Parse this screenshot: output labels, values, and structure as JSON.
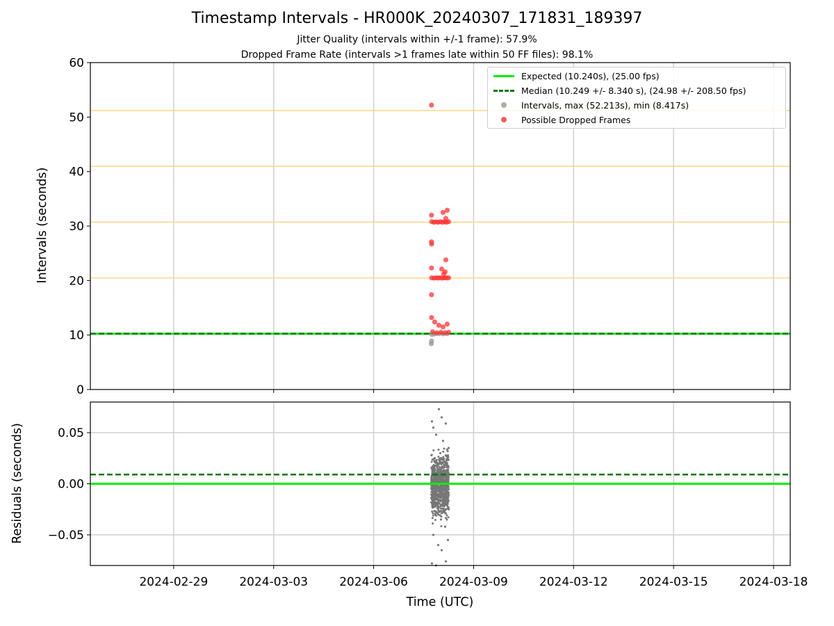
{
  "title": "Timestamp Intervals - HR000K_20240307_171831_189397",
  "subtitle1": "Jitter Quality (intervals within +/-1 frame): 57.9%",
  "subtitle2": "Dropped Frame Rate (intervals >1 frames late within 50 FF files): 98.1%",
  "colors": {
    "expected": "#00ee00",
    "median": "#007700",
    "intervals": "#999999",
    "dropped": "#ff3333",
    "residuals": "#777777",
    "frame_lines": "#ffd27a",
    "grid": "#cccccc"
  },
  "legend": {
    "expected": "Expected (10.240s), (25.00 fps)",
    "median": "Median (10.249 +/- 8.340 s), (24.98 +/- 208.50 fps)",
    "intervals": "Intervals, max (52.213s), min (8.417s)",
    "dropped": "Possible Dropped Frames"
  },
  "chart_data": [
    {
      "type": "scatter",
      "ylabel": "Intervals (seconds)",
      "ylim": [
        0,
        60
      ],
      "yticks": [
        "0",
        "10",
        "20",
        "30",
        "40",
        "50",
        "60"
      ],
      "xlim": [
        "2024-02-26T12:00",
        "2024-03-18T12:00"
      ],
      "grid": "vertical",
      "legend_position": "top-right",
      "frame_multiple_lines": [
        20.48,
        30.72,
        40.96,
        51.2
      ],
      "expected": 10.24,
      "median": 10.249,
      "series": [
        {
          "name": "Intervals, max (52.213s), min (8.417s)",
          "points": [
            {
              "x": "2024-03-07T17:30",
              "y": 8.42
            },
            {
              "x": "2024-03-07T17:45",
              "y": 8.9
            },
            {
              "x": "2024-03-07T18:00",
              "y": 10.1
            },
            {
              "x": "2024-03-07T20:00",
              "y": 10.2
            },
            {
              "x": "2024-03-07T23:00",
              "y": 10.25
            },
            {
              "x": "2024-03-08T02:00",
              "y": 10.22
            },
            {
              "x": "2024-03-08T05:00",
              "y": 10.26
            }
          ]
        },
        {
          "name": "Possible Dropped Frames",
          "points": [
            {
              "x": "2024-03-07T17:40",
              "y": 52.2
            },
            {
              "x": "2024-03-07T17:40",
              "y": 32.0
            },
            {
              "x": "2024-03-08T02:00",
              "y": 32.5
            },
            {
              "x": "2024-03-08T05:00",
              "y": 32.9
            },
            {
              "x": "2024-03-08T04:00",
              "y": 31.4
            },
            {
              "x": "2024-03-07T17:50",
              "y": 30.8
            },
            {
              "x": "2024-03-07T19:30",
              "y": 30.7
            },
            {
              "x": "2024-03-07T21:00",
              "y": 30.75
            },
            {
              "x": "2024-03-07T22:30",
              "y": 30.7
            },
            {
              "x": "2024-03-08T00:00",
              "y": 30.8
            },
            {
              "x": "2024-03-08T01:30",
              "y": 30.7
            },
            {
              "x": "2024-03-08T03:00",
              "y": 30.75
            },
            {
              "x": "2024-03-08T04:30",
              "y": 30.7
            },
            {
              "x": "2024-03-08T06:00",
              "y": 30.8
            },
            {
              "x": "2024-03-07T17:40",
              "y": 27.1
            },
            {
              "x": "2024-03-07T17:45",
              "y": 26.7
            },
            {
              "x": "2024-03-08T04:00",
              "y": 23.8
            },
            {
              "x": "2024-03-07T17:40",
              "y": 22.3
            },
            {
              "x": "2024-03-08T01:00",
              "y": 22.1
            },
            {
              "x": "2024-03-08T03:30",
              "y": 21.6
            },
            {
              "x": "2024-03-08T02:30",
              "y": 21.2
            },
            {
              "x": "2024-03-07T17:50",
              "y": 20.5
            },
            {
              "x": "2024-03-07T19:30",
              "y": 20.45
            },
            {
              "x": "2024-03-07T21:00",
              "y": 20.5
            },
            {
              "x": "2024-03-07T22:30",
              "y": 20.48
            },
            {
              "x": "2024-03-08T00:00",
              "y": 20.5
            },
            {
              "x": "2024-03-08T01:30",
              "y": 20.45
            },
            {
              "x": "2024-03-08T03:00",
              "y": 20.5
            },
            {
              "x": "2024-03-08T04:30",
              "y": 20.48
            },
            {
              "x": "2024-03-08T06:00",
              "y": 20.5
            },
            {
              "x": "2024-03-07T17:40",
              "y": 17.4
            },
            {
              "x": "2024-03-07T17:45",
              "y": 13.2
            },
            {
              "x": "2024-03-07T20:00",
              "y": 12.4
            },
            {
              "x": "2024-03-08T05:00",
              "y": 12.0
            },
            {
              "x": "2024-03-07T23:00",
              "y": 11.8
            },
            {
              "x": "2024-03-08T02:00",
              "y": 11.5
            },
            {
              "x": "2024-03-07T18:30",
              "y": 10.6
            },
            {
              "x": "2024-03-07T21:30",
              "y": 10.4
            },
            {
              "x": "2024-03-08T00:30",
              "y": 10.5
            },
            {
              "x": "2024-03-08T03:30",
              "y": 10.4
            },
            {
              "x": "2024-03-08T06:00",
              "y": 10.5
            }
          ]
        }
      ]
    },
    {
      "type": "scatter",
      "xlabel": "Time (UTC)",
      "ylabel": "Residuals (seconds)",
      "ylim": [
        -0.08,
        0.08
      ],
      "yticks": [
        "0.05",
        "0.00",
        "−0.05"
      ],
      "xticks": [
        "2024-02-29",
        "2024-03-03",
        "2024-03-06",
        "2024-03-09",
        "2024-03-12",
        "2024-03-15",
        "2024-03-18"
      ],
      "xlim": [
        "2024-02-26T12:00",
        "2024-03-18T12:00"
      ],
      "grid": "both",
      "expected": 0.0,
      "median": 0.009,
      "series": [
        {
          "name": "Residuals",
          "points": [
            {
              "x": "2024-03-07T18:00",
              "y": 0.061
            },
            {
              "x": "2024-03-07T19:00",
              "y": 0.055
            },
            {
              "x": "2024-03-07T21:00",
              "y": 0.048
            },
            {
              "x": "2024-03-07T23:00",
              "y": 0.073
            },
            {
              "x": "2024-03-08T01:00",
              "y": 0.065
            },
            {
              "x": "2024-03-08T02:00",
              "y": 0.042
            },
            {
              "x": "2024-03-08T04:00",
              "y": 0.059
            },
            {
              "x": "2024-03-08T06:00",
              "y": 0.035
            },
            {
              "x": "2024-03-07T20:00",
              "y": 0.025
            },
            {
              "x": "2024-03-08T00:00",
              "y": 0.03
            },
            {
              "x": "2024-03-08T03:00",
              "y": 0.022
            },
            {
              "x": "2024-03-07T18:30",
              "y": 0.015
            },
            {
              "x": "2024-03-07T22:00",
              "y": 0.012
            },
            {
              "x": "2024-03-08T05:00",
              "y": 0.01
            },
            {
              "x": "2024-03-07T19:30",
              "y": 0.005
            },
            {
              "x": "2024-03-08T01:30",
              "y": 0.002
            },
            {
              "x": "2024-03-07T17:45",
              "y": -0.002
            },
            {
              "x": "2024-03-07T21:30",
              "y": -0.005
            },
            {
              "x": "2024-03-08T04:30",
              "y": -0.008
            },
            {
              "x": "2024-03-07T23:30",
              "y": -0.012
            },
            {
              "x": "2024-03-08T02:30",
              "y": -0.018
            },
            {
              "x": "2024-03-07T18:15",
              "y": -0.022
            },
            {
              "x": "2024-03-08T06:00",
              "y": -0.025
            },
            {
              "x": "2024-03-07T20:30",
              "y": -0.03
            },
            {
              "x": "2024-03-08T00:30",
              "y": -0.035
            },
            {
              "x": "2024-03-08T03:30",
              "y": -0.042
            },
            {
              "x": "2024-03-07T19:00",
              "y": -0.05
            },
            {
              "x": "2024-03-08T05:30",
              "y": -0.055
            },
            {
              "x": "2024-03-07T22:30",
              "y": -0.06
            },
            {
              "x": "2024-03-08T01:00",
              "y": -0.065
            },
            {
              "x": "2024-03-07T18:00",
              "y": -0.078
            },
            {
              "x": "2024-03-08T04:00",
              "y": -0.076
            },
            {
              "x": "2024-03-07T21:00",
              "y": -0.08
            }
          ]
        }
      ]
    }
  ]
}
